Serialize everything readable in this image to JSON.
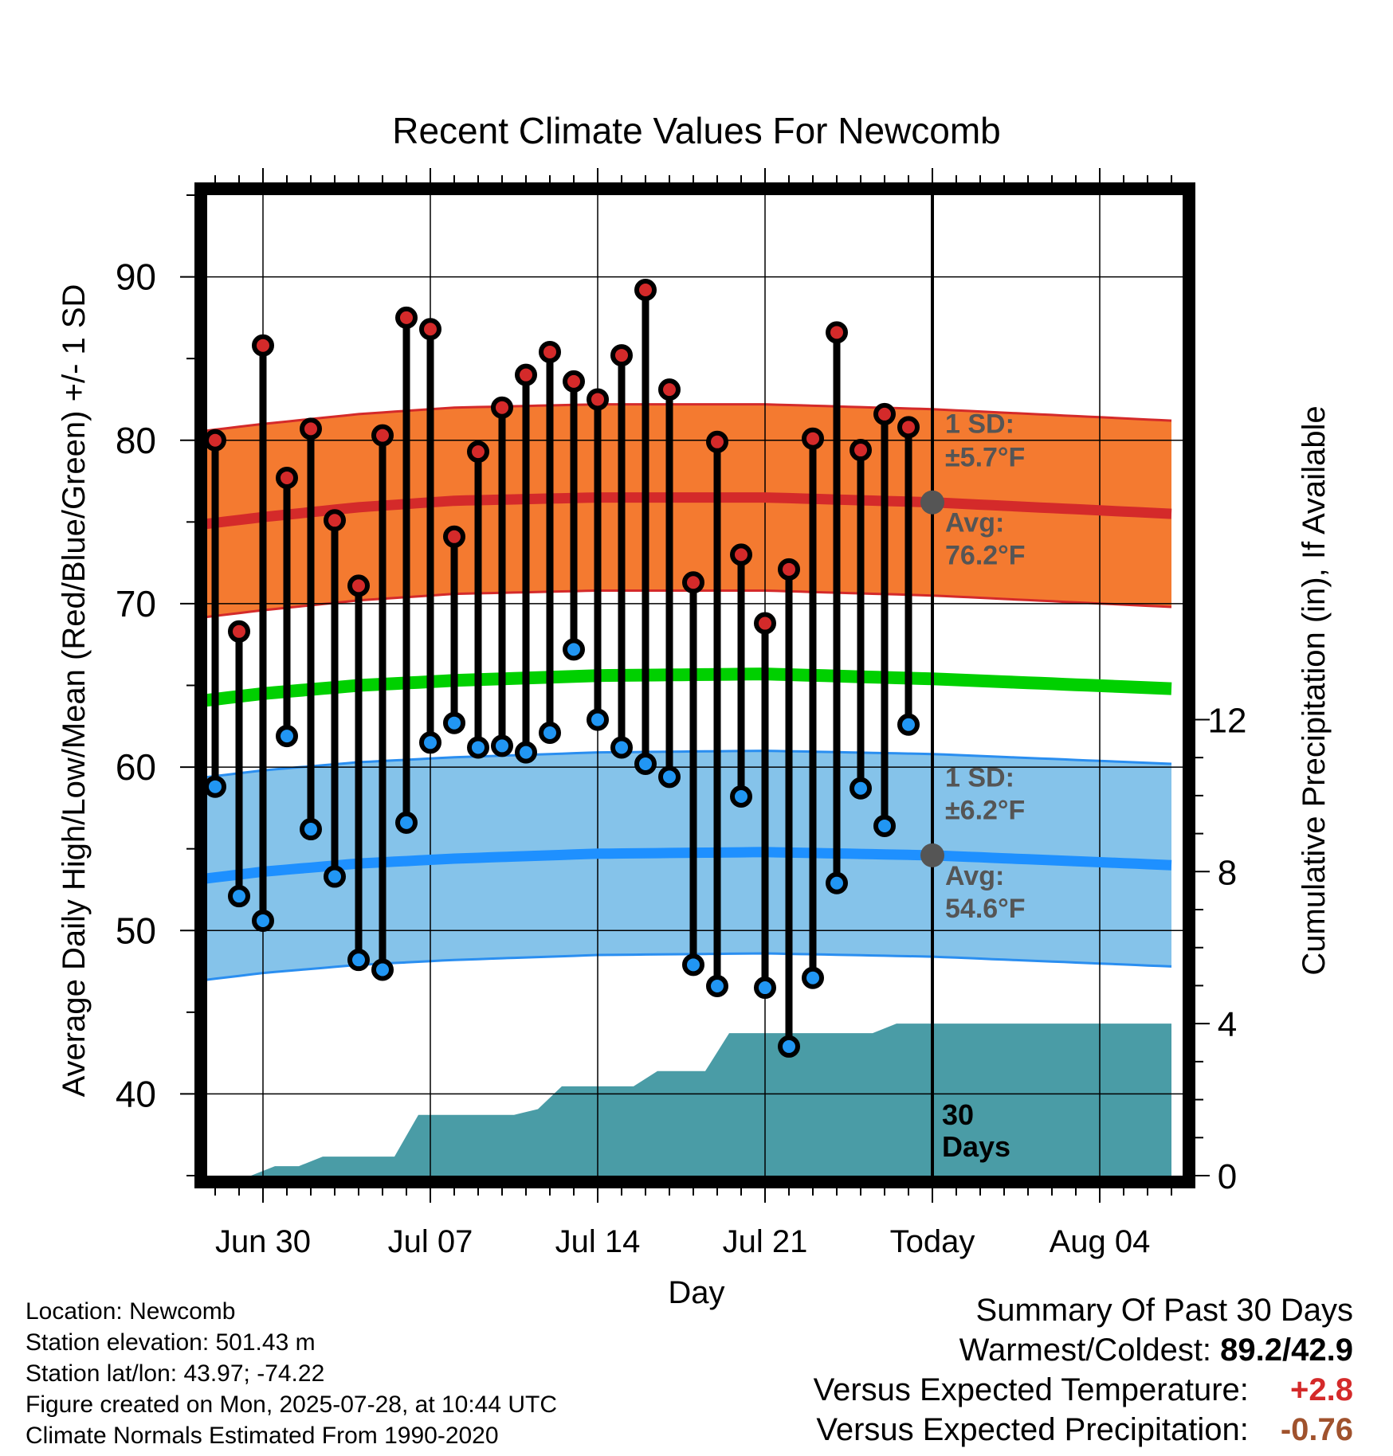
{
  "chart_data": {
    "type": "line",
    "title": "Recent Climate Values For Newcomb",
    "xlabel": "Day",
    "ylabel": "Average Daily High/Low/Mean (Red/Blue/Green) +/- 1 SD",
    "y2label": "Cumulative Precipitation (in), If Available",
    "ylim": [
      35,
      95
    ],
    "y2lim": [
      0,
      25.8
    ],
    "yticks": [
      "40",
      "50",
      "60",
      "70",
      "80",
      "90"
    ],
    "y2ticks": [
      "0",
      "4",
      "8",
      "12"
    ],
    "xticks": [
      "Jun 30",
      "Jul 07",
      "Jul 14",
      "Jul 21",
      "Today",
      "Aug 04"
    ],
    "dates": [
      "Jun 28",
      "Jun 29",
      "Jun 30",
      "Jul 01",
      "Jul 02",
      "Jul 03",
      "Jul 04",
      "Jul 05",
      "Jul 06",
      "Jul 07",
      "Jul 08",
      "Jul 09",
      "Jul 10",
      "Jul 11",
      "Jul 12",
      "Jul 13",
      "Jul 14",
      "Jul 15",
      "Jul 16",
      "Jul 17",
      "Jul 18",
      "Jul 19",
      "Jul 20",
      "Jul 21",
      "Jul 22",
      "Jul 23",
      "Jul 24",
      "Jul 25",
      "Jul 26",
      "Jul 27"
    ],
    "daily_high": [
      80.0,
      68.3,
      85.8,
      77.7,
      80.7,
      75.1,
      71.1,
      80.3,
      87.5,
      86.8,
      74.1,
      79.3,
      82.0,
      84.0,
      85.4,
      83.6,
      82.5,
      85.2,
      89.2,
      83.1,
      71.3,
      79.9,
      73.0,
      68.8,
      72.1,
      80.1,
      86.6,
      79.4,
      81.6,
      80.8
    ],
    "daily_low": [
      58.8,
      52.1,
      50.6,
      61.9,
      56.2,
      53.3,
      48.2,
      47.6,
      56.6,
      61.5,
      62.7,
      61.2,
      61.3,
      60.9,
      62.1,
      67.2,
      62.9,
      61.2,
      60.2,
      59.4,
      47.9,
      46.6,
      58.2,
      46.5,
      42.9,
      47.1,
      52.9,
      58.7,
      56.4,
      62.6
    ],
    "normal_days": [
      "Jun 26",
      "Jun 30",
      "Jul 04",
      "Jul 08",
      "Jul 14",
      "Jul 21",
      "Jul 28",
      "Aug 07"
    ],
    "normal_high_mean": [
      74.6,
      75.3,
      75.9,
      76.3,
      76.5,
      76.5,
      76.2,
      75.5
    ],
    "normal_high_sd": 5.7,
    "normal_low_mean": [
      52.9,
      53.6,
      54.1,
      54.4,
      54.7,
      54.8,
      54.6,
      54.0
    ],
    "normal_low_sd": 6.2,
    "normal_mean": [
      63.8,
      64.5,
      65.0,
      65.3,
      65.6,
      65.7,
      65.4,
      64.8
    ],
    "precip_cumulative": [
      0,
      0,
      0,
      0.25,
      0.25,
      0.5,
      0.5,
      0.5,
      0.5,
      1.6,
      1.6,
      1.6,
      1.6,
      1.6,
      1.75,
      2.35,
      2.35,
      2.35,
      2.35,
      2.75,
      2.75,
      2.75,
      3.75,
      3.75,
      3.75,
      3.75,
      3.75,
      3.75,
      3.75,
      4.0,
      4.0
    ],
    "precip_days": [
      "Jun 28",
      "Jun 29",
      "Jun 30",
      "Jul 01",
      "Jul 02",
      "Jul 03",
      "Jul 04",
      "Jul 05",
      "Jul 06",
      "Jul 07",
      "Jul 08",
      "Jul 09",
      "Jul 10",
      "Jul 11",
      "Jul 12",
      "Jul 13",
      "Jul 14",
      "Jul 15",
      "Jul 16",
      "Jul 17",
      "Jul 18",
      "Jul 19",
      "Jul 20",
      "Jul 21",
      "Jul 22",
      "Jul 23",
      "Jul 24",
      "Jul 25",
      "Jul 26",
      "Jul 27",
      "Aug 07"
    ],
    "today": "Jul 28",
    "high_band_label": [
      "1 SD:",
      "±5.7°F",
      "Avg:",
      "76.2°F"
    ],
    "low_band_label": [
      "1 SD:",
      "±6.2°F",
      "Avg:",
      "54.6°F"
    ],
    "period_label": [
      "30",
      "Days"
    ],
    "grid": true,
    "colors": {
      "high_band": "#f47a30",
      "high_edge": "#d42a2a",
      "high_line": "#d42a2a",
      "low_band": "#85c3ea",
      "low_edge": "#2a8ef0",
      "low_line": "#1e90ff",
      "mean_line": "#00d000",
      "precip": "#4a9ca6",
      "high_dot": "#d42a2a",
      "low_dot": "#2196f3",
      "avg_marker": "#555555",
      "annotation": "#555555"
    }
  },
  "meta": {
    "location": "Location: Newcomb",
    "elevation": "Station elevation: 501.43 m",
    "latlon": "Station lat/lon: 43.97; -74.22",
    "created": "Figure created on Mon, 2025-07-28, at 10:44 UTC",
    "normals": "Climate Normals Estimated From 1990-2020"
  },
  "summary": {
    "title": "Summary Of Past 30 Days",
    "warm_label": "Warmest/Coldest:",
    "warm_value": "89.2/42.9",
    "temp_label": "Versus Expected Temperature:",
    "temp_value": "+2.8",
    "precip_label": "Versus Expected Precipitation:",
    "precip_value": "-0.76"
  }
}
